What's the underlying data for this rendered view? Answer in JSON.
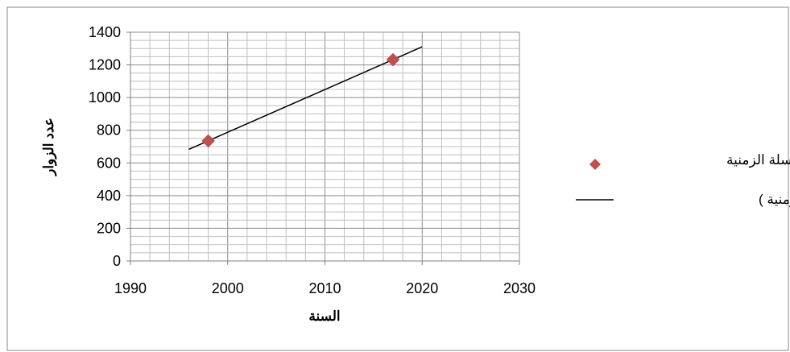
{
  "chart_data": {
    "type": "scatter",
    "title": "",
    "xlabel": "السنة",
    "ylabel": "عدد الزوار",
    "xlim": [
      1990,
      2030
    ],
    "ylim": [
      0,
      1400
    ],
    "x_ticks": [
      "1990",
      "2000",
      "2010",
      "2020",
      "2030"
    ],
    "y_ticks": [
      "0",
      "200",
      "400",
      "600",
      "800",
      "1000",
      "1200",
      "1400"
    ],
    "grid": true,
    "legend_position": "right",
    "series": [
      {
        "name": "السلسلة الزمنية",
        "kind": "scatter",
        "marker": "diamond",
        "color": "#c0504d",
        "points": [
          {
            "x": 1998,
            "y": 735
          },
          {
            "x": 2017,
            "y": 1232
          }
        ]
      },
      {
        "name": "خطي (السلسلة الزمنية )",
        "kind": "trendline",
        "color": "#000000",
        "points": [
          {
            "x": 1996,
            "y": 683
          },
          {
            "x": 2020,
            "y": 1311
          }
        ]
      }
    ]
  }
}
